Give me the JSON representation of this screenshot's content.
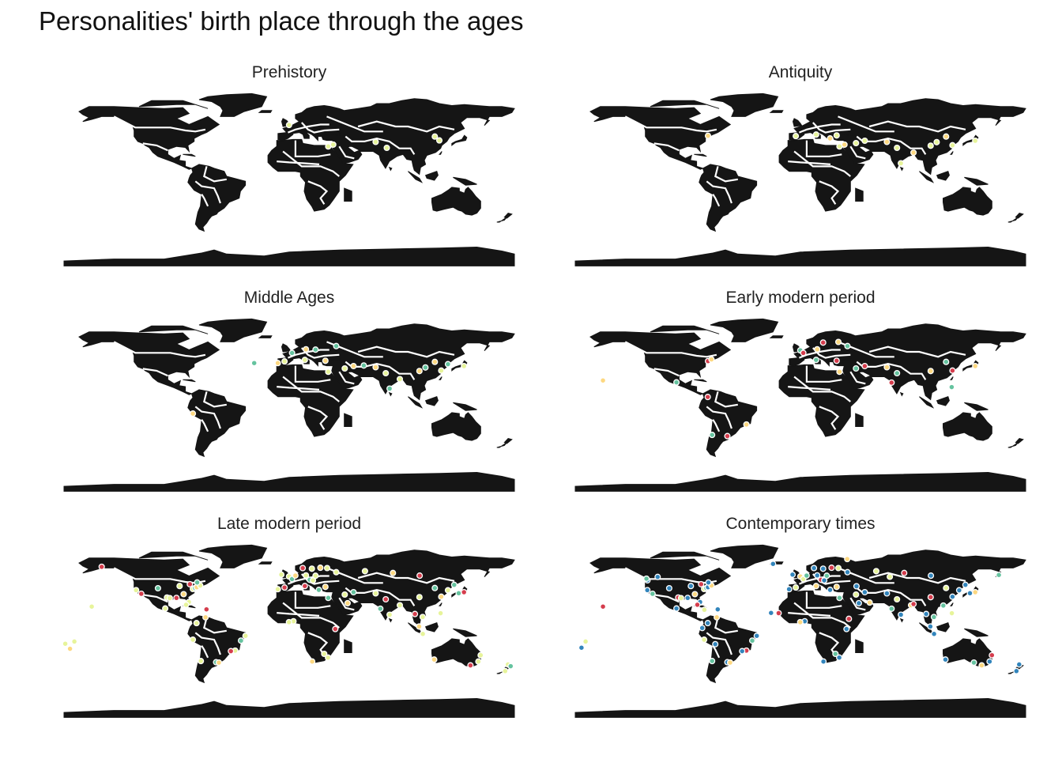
{
  "title": "Personalities' birth place through the ages",
  "colors": {
    "land": "#151515",
    "border": "#ffffff",
    "period_palette": [
      "#e7f49a",
      "#fdd881",
      "#65c39f",
      "#d53d4d",
      "#3285bc"
    ]
  },
  "panels": [
    {
      "name": "Prehistory",
      "dot_color": "#e7f49a",
      "density": "few",
      "points": [
        [
          -0.14,
          51.5
        ],
        [
          31.2,
          30.0
        ],
        [
          35.2,
          31.8
        ],
        [
          69.1,
          34.5
        ],
        [
          78.0,
          28.6
        ],
        [
          116.4,
          39.9
        ],
        [
          120.0,
          36.0
        ]
      ]
    },
    {
      "name": "Antiquity",
      "dot_color": "#fdd881",
      "density": "some",
      "points": [
        [
          -73.9,
          40.7
        ],
        [
          -3.7,
          40.4
        ],
        [
          12.5,
          41.9
        ],
        [
          23.7,
          38.0
        ],
        [
          28.9,
          41.0
        ],
        [
          31.2,
          30.0
        ],
        [
          35.2,
          31.8
        ],
        [
          44.4,
          33.3
        ],
        [
          51.4,
          35.7
        ],
        [
          69.1,
          34.5
        ],
        [
          77.2,
          28.6
        ],
        [
          80.3,
          13.1
        ],
        [
          90.4,
          23.8
        ],
        [
          104.1,
          30.7
        ],
        [
          108.9,
          34.3
        ],
        [
          116.4,
          39.9
        ],
        [
          121.5,
          31.2
        ],
        [
          139.7,
          35.7
        ]
      ]
    },
    {
      "name": "Middle Ages",
      "dot_color": "#65c39f",
      "density": "moderate",
      "points": [
        [
          -28.0,
          38.7
        ],
        [
          -9.1,
          38.7
        ],
        [
          -3.7,
          40.4
        ],
        [
          2.3,
          48.9
        ],
        [
          12.5,
          41.9
        ],
        [
          13.4,
          52.5
        ],
        [
          21.0,
          52.2
        ],
        [
          28.9,
          41.0
        ],
        [
          31.2,
          30.0
        ],
        [
          37.6,
          55.8
        ],
        [
          44.4,
          33.3
        ],
        [
          51.4,
          35.7
        ],
        [
          59.6,
          36.3
        ],
        [
          69.1,
          34.5
        ],
        [
          77.2,
          28.6
        ],
        [
          80.3,
          13.1
        ],
        [
          88.4,
          22.6
        ],
        [
          104.1,
          30.7
        ],
        [
          108.9,
          34.3
        ],
        [
          116.4,
          39.9
        ],
        [
          121.5,
          31.2
        ],
        [
          126.9,
          37.6
        ],
        [
          139.7,
          35.7
        ],
        [
          -77.0,
          -12.0
        ]
      ]
    },
    {
      "name": "Early modern period",
      "dot_color": "#d53d4d",
      "density": "moderate",
      "points": [
        [
          -73.9,
          40.7
        ],
        [
          -71.1,
          42.4
        ],
        [
          -99.1,
          19.4
        ],
        [
          -58.4,
          -34.6
        ],
        [
          -43.2,
          -22.9
        ],
        [
          -70.6,
          -33.4
        ],
        [
          -74.1,
          4.7
        ],
        [
          -157.8,
          21.3
        ],
        [
          -0.1,
          51.5
        ],
        [
          2.3,
          48.9
        ],
        [
          13.4,
          52.5
        ],
        [
          12.5,
          41.9
        ],
        [
          18.1,
          59.3
        ],
        [
          30.3,
          59.9
        ],
        [
          37.6,
          55.8
        ],
        [
          28.9,
          41.0
        ],
        [
          31.2,
          30.0
        ],
        [
          44.4,
          33.3
        ],
        [
          51.4,
          35.7
        ],
        [
          69.1,
          34.5
        ],
        [
          77.2,
          28.6
        ],
        [
          72.8,
          19.1
        ],
        [
          104.1,
          30.7
        ],
        [
          116.4,
          39.9
        ],
        [
          121.5,
          31.2
        ],
        [
          139.7,
          35.7
        ],
        [
          120.9,
          14.6
        ]
      ]
    },
    {
      "name": "Late modern period",
      "dot_color": "#e7f49a",
      "density": "many",
      "points": [
        [
          -122.4,
          37.8
        ],
        [
          -118.2,
          34.1
        ],
        [
          -104.9,
          39.7
        ],
        [
          -97.7,
          30.3
        ],
        [
          -95.4,
          29.8
        ],
        [
          -90.1,
          29.9
        ],
        [
          -87.6,
          41.9
        ],
        [
          -84.4,
          33.7
        ],
        [
          -80.2,
          25.8
        ],
        [
          -77.0,
          38.9
        ],
        [
          -75.2,
          39.9
        ],
        [
          -73.9,
          40.7
        ],
        [
          -71.1,
          42.4
        ],
        [
          -79.4,
          43.7
        ],
        [
          -73.6,
          45.5
        ],
        [
          -99.1,
          19.4
        ],
        [
          -82.4,
          23.1
        ],
        [
          -66.1,
          18.5
        ],
        [
          -74.1,
          4.7
        ],
        [
          -66.9,
          10.5
        ],
        [
          -77.0,
          -12.0
        ],
        [
          -70.6,
          -33.4
        ],
        [
          -58.4,
          -34.6
        ],
        [
          -56.2,
          -34.9
        ],
        [
          -43.2,
          -22.9
        ],
        [
          -46.6,
          -23.5
        ],
        [
          -38.5,
          -12.9
        ],
        [
          -34.9,
          -8.1
        ],
        [
          -157.8,
          21.3
        ],
        [
          -149.9,
          61.2
        ],
        [
          -171.7,
          -13.8
        ],
        [
          -175.2,
          -21.1
        ],
        [
          -0.1,
          51.5
        ],
        [
          -6.3,
          53.3
        ],
        [
          2.3,
          48.9
        ],
        [
          4.9,
          52.4
        ],
        [
          13.4,
          52.5
        ],
        [
          12.5,
          41.9
        ],
        [
          16.4,
          48.2
        ],
        [
          19.0,
          47.5
        ],
        [
          21.0,
          52.2
        ],
        [
          10.8,
          59.9
        ],
        [
          18.1,
          59.3
        ],
        [
          24.9,
          60.2
        ],
        [
          30.3,
          59.9
        ],
        [
          37.6,
          55.8
        ],
        [
          23.7,
          38.0
        ],
        [
          28.9,
          41.0
        ],
        [
          -9.1,
          38.7
        ],
        [
          -3.7,
          40.4
        ],
        [
          31.2,
          30.0
        ],
        [
          3.4,
          6.5
        ],
        [
          -0.2,
          5.6
        ],
        [
          36.8,
          -1.3
        ],
        [
          28.0,
          -26.2
        ],
        [
          18.4,
          -33.9
        ],
        [
          31.0,
          -29.9
        ],
        [
          44.4,
          33.3
        ],
        [
          51.4,
          35.7
        ],
        [
          46.7,
          24.7
        ],
        [
          69.1,
          34.5
        ],
        [
          77.2,
          28.6
        ],
        [
          72.8,
          19.1
        ],
        [
          80.3,
          13.1
        ],
        [
          88.4,
          22.6
        ],
        [
          100.5,
          13.8
        ],
        [
          106.7,
          10.8
        ],
        [
          103.8,
          1.3
        ],
        [
          106.8,
          -6.2
        ],
        [
          104.1,
          30.7
        ],
        [
          116.4,
          39.9
        ],
        [
          121.5,
          31.2
        ],
        [
          126.9,
          37.6
        ],
        [
          139.7,
          35.7
        ],
        [
          135.5,
          34.7
        ],
        [
          121.0,
          14.6
        ],
        [
          151.2,
          -33.9
        ],
        [
          144.9,
          -37.8
        ],
        [
          153.0,
          -27.5
        ],
        [
          115.9,
          -31.9
        ],
        [
          174.8,
          -36.8
        ],
        [
          172.6,
          -43.5
        ],
        [
          177.0,
          -38.6
        ],
        [
          82.9,
          55.0
        ],
        [
          60.6,
          56.8
        ],
        [
          104.3,
          52.3
        ],
        [
          131.9,
          43.1
        ],
        [
          -179.0,
          -16.0
        ]
      ]
    },
    {
      "name": "Contemporary times",
      "dot_color": "#3285bc",
      "density": "many",
      "points": [
        [
          -122.4,
          37.8
        ],
        [
          -118.2,
          34.1
        ],
        [
          -122.3,
          47.6
        ],
        [
          -104.9,
          39.7
        ],
        [
          -97.7,
          30.3
        ],
        [
          -95.4,
          29.8
        ],
        [
          -90.1,
          29.9
        ],
        [
          -87.6,
          41.9
        ],
        [
          -84.4,
          33.7
        ],
        [
          -80.2,
          25.8
        ],
        [
          -77.0,
          38.9
        ],
        [
          -75.2,
          39.9
        ],
        [
          -73.9,
          40.7
        ],
        [
          -71.1,
          42.4
        ],
        [
          -79.4,
          43.7
        ],
        [
          -73.6,
          45.5
        ],
        [
          -123.1,
          49.3
        ],
        [
          -114.1,
          51.0
        ],
        [
          -99.1,
          19.4
        ],
        [
          -82.4,
          23.1
        ],
        [
          -76.8,
          18.0
        ],
        [
          -66.1,
          18.5
        ],
        [
          -74.1,
          4.7
        ],
        [
          -66.9,
          10.5
        ],
        [
          -78.5,
          -0.2
        ],
        [
          -77.0,
          -12.0
        ],
        [
          -70.6,
          -33.4
        ],
        [
          -58.4,
          -34.6
        ],
        [
          -56.2,
          -34.9
        ],
        [
          -43.2,
          -22.9
        ],
        [
          -46.6,
          -23.5
        ],
        [
          -38.5,
          -12.9
        ],
        [
          -34.9,
          -8.1
        ],
        [
          -68.1,
          -16.5
        ],
        [
          -157.8,
          21.3
        ],
        [
          -171.7,
          -13.8
        ],
        [
          -21.9,
          64.1
        ],
        [
          -23.5,
          14.9
        ],
        [
          -0.1,
          51.5
        ],
        [
          -6.3,
          53.3
        ],
        [
          2.3,
          48.9
        ],
        [
          4.9,
          52.4
        ],
        [
          13.4,
          52.5
        ],
        [
          12.5,
          41.9
        ],
        [
          16.4,
          48.2
        ],
        [
          19.0,
          47.5
        ],
        [
          21.0,
          52.2
        ],
        [
          10.8,
          59.9
        ],
        [
          18.1,
          59.3
        ],
        [
          24.9,
          60.2
        ],
        [
          30.3,
          59.9
        ],
        [
          37.6,
          55.8
        ],
        [
          23.7,
          38.0
        ],
        [
          28.9,
          41.0
        ],
        [
          -9.1,
          38.7
        ],
        [
          -3.7,
          40.4
        ],
        [
          31.2,
          30.0
        ],
        [
          3.4,
          6.5
        ],
        [
          -0.2,
          5.6
        ],
        [
          -17.4,
          14.7
        ],
        [
          36.8,
          -1.3
        ],
        [
          28.0,
          -26.2
        ],
        [
          18.4,
          -33.9
        ],
        [
          31.0,
          -29.9
        ],
        [
          38.7,
          9.0
        ],
        [
          44.4,
          33.3
        ],
        [
          51.4,
          35.7
        ],
        [
          46.7,
          24.7
        ],
        [
          55.3,
          25.3
        ],
        [
          69.1,
          34.5
        ],
        [
          77.2,
          28.6
        ],
        [
          72.8,
          19.1
        ],
        [
          80.3,
          13.1
        ],
        [
          88.4,
          22.6
        ],
        [
          90.4,
          23.8
        ],
        [
          100.5,
          13.8
        ],
        [
          106.7,
          10.8
        ],
        [
          103.8,
          1.3
        ],
        [
          106.8,
          -6.2
        ],
        [
          104.1,
          30.7
        ],
        [
          116.4,
          39.9
        ],
        [
          121.5,
          31.2
        ],
        [
          126.9,
          37.6
        ],
        [
          139.7,
          35.7
        ],
        [
          135.5,
          34.7
        ],
        [
          121.0,
          14.6
        ],
        [
          114.2,
          22.3
        ],
        [
          151.2,
          -33.9
        ],
        [
          144.9,
          -37.8
        ],
        [
          153.0,
          -27.5
        ],
        [
          115.9,
          -31.9
        ],
        [
          138.6,
          -34.9
        ],
        [
          174.8,
          -36.8
        ],
        [
          172.6,
          -43.5
        ],
        [
          82.9,
          55.0
        ],
        [
          60.6,
          56.8
        ],
        [
          104.3,
          52.3
        ],
        [
          131.9,
          43.1
        ],
        [
          37.4,
          69.0
        ],
        [
          44.8,
          41.7
        ],
        [
          71.4,
          51.2
        ],
        [
          158.6,
          53.0
        ],
        [
          -175.0,
          -20.0
        ]
      ]
    }
  ]
}
